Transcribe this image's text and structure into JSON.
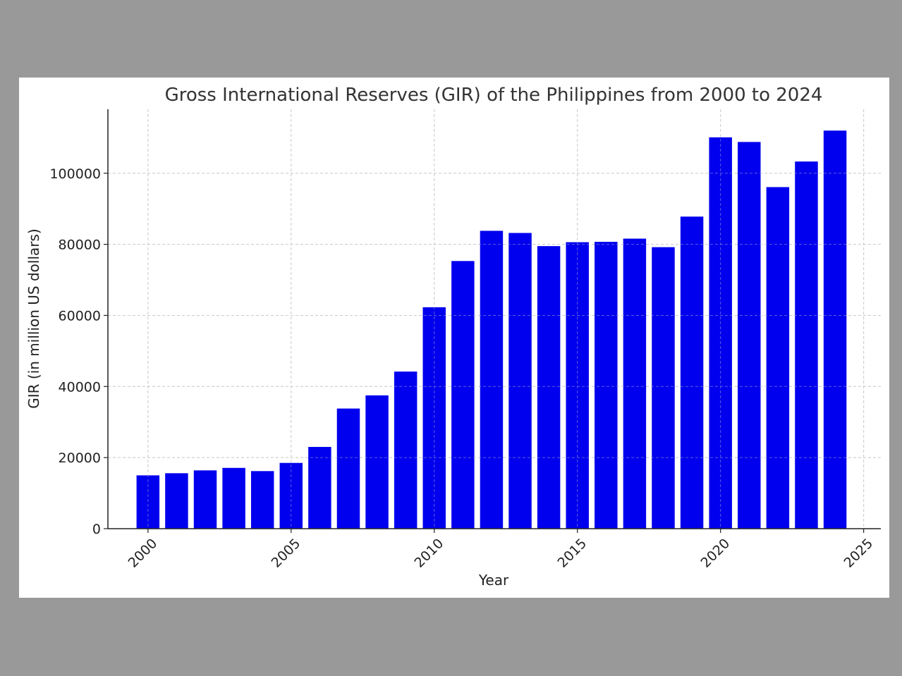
{
  "chart_data": {
    "type": "bar",
    "title": "Gross International Reserves (GIR) of the Philippines from 2000 to 2024",
    "xlabel": "Year",
    "ylabel": "GIR (in million US dollars)",
    "categories": [
      2000,
      2001,
      2002,
      2003,
      2004,
      2005,
      2006,
      2007,
      2008,
      2009,
      2010,
      2011,
      2012,
      2013,
      2014,
      2015,
      2016,
      2017,
      2018,
      2019,
      2020,
      2021,
      2022,
      2023,
      2024
    ],
    "values": [
      15000,
      15600,
      16400,
      17100,
      16200,
      18500,
      23000,
      33800,
      37500,
      44200,
      62300,
      75300,
      83800,
      83200,
      79500,
      80600,
      80700,
      81600,
      79200,
      87800,
      110100,
      108800,
      96100,
      103300,
      112000
    ],
    "xticks": [
      "2000",
      "2005",
      "2010",
      "2015",
      "2020",
      "2025"
    ],
    "yticks": [
      "0",
      "20000",
      "40000",
      "60000",
      "80000",
      "100000"
    ],
    "ylim": [
      0,
      118000
    ],
    "xlim": [
      1998.6,
      2025.6
    ],
    "grid": true,
    "bar_color": "#0000ee",
    "grid_color": "#cccccc"
  }
}
